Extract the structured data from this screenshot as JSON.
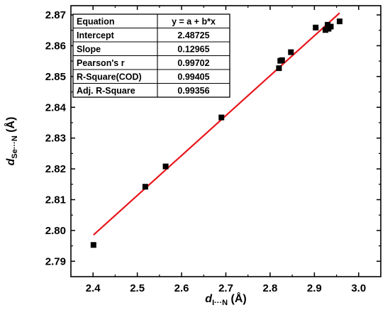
{
  "chart_data": {
    "type": "scatter",
    "xlabel": {
      "main": "d",
      "sub": "I···N",
      "unit": " (Å)"
    },
    "ylabel": {
      "main": "d",
      "sub": "Se···N",
      "unit": " (Å)"
    },
    "xlim": [
      2.35,
      3.05
    ],
    "ylim": [
      2.785,
      2.873
    ],
    "x_ticks": [
      "2.4",
      "2.5",
      "2.6",
      "2.7",
      "2.8",
      "2.9",
      "3.0"
    ],
    "y_ticks": [
      "2.79",
      "2.80",
      "2.81",
      "2.82",
      "2.83",
      "2.84",
      "2.85",
      "2.86",
      "2.87"
    ],
    "points": [
      {
        "x": 2.401,
        "y": 2.7953
      },
      {
        "x": 2.518,
        "y": 2.8142
      },
      {
        "x": 2.564,
        "y": 2.8208
      },
      {
        "x": 2.69,
        "y": 2.8367
      },
      {
        "x": 2.82,
        "y": 2.8527
      },
      {
        "x": 2.823,
        "y": 2.8551
      },
      {
        "x": 2.827,
        "y": 2.8553
      },
      {
        "x": 2.847,
        "y": 2.8579
      },
      {
        "x": 2.903,
        "y": 2.8659
      },
      {
        "x": 2.925,
        "y": 2.8651
      },
      {
        "x": 2.93,
        "y": 2.8668
      },
      {
        "x": 2.932,
        "y": 2.8655
      },
      {
        "x": 2.937,
        "y": 2.8662
      },
      {
        "x": 2.957,
        "y": 2.8679
      }
    ],
    "fit": {
      "intercept": 2.48725,
      "slope": 0.12965,
      "x_range": [
        2.401,
        2.957
      ]
    },
    "colors": {
      "points": "#000000",
      "fit_line": "#e8161b",
      "axis": "#000000"
    },
    "stats_table": {
      "position": "top-left",
      "rows": [
        [
          "Equation",
          "y = a + b*x"
        ],
        [
          "Intercept",
          "2.48725"
        ],
        [
          "Slope",
          "0.12965"
        ],
        [
          "Pearson's r",
          "0.99702"
        ],
        [
          "R-Square(COD)",
          "0.99405"
        ],
        [
          "Adj. R-Square",
          "0.99356"
        ]
      ]
    }
  }
}
